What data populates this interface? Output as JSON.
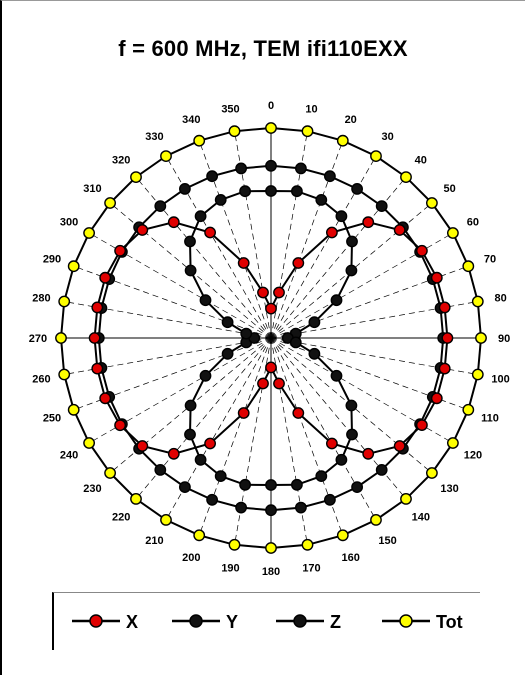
{
  "chart_data": {
    "type": "polar",
    "title": "f = 600 MHz, TEM  ifi110EXX",
    "angle_ticks": [
      "0",
      "10",
      "20",
      "30",
      "40",
      "50",
      "60",
      "70",
      "80",
      "90",
      "100",
      "110",
      "120",
      "130",
      "140",
      "150",
      "160",
      "170",
      "180",
      "190",
      "200",
      "210",
      "220",
      "230",
      "240",
      "250",
      "260",
      "270",
      "280",
      "290",
      "300",
      "310",
      "320",
      "330",
      "340",
      "350"
    ],
    "angles_deg": [
      0,
      10,
      20,
      30,
      40,
      50,
      60,
      70,
      80,
      90,
      100,
      110,
      120,
      130,
      140,
      150,
      160,
      170,
      180,
      190,
      200,
      210,
      220,
      230,
      240,
      250,
      260,
      270,
      280,
      290,
      300,
      310,
      320,
      330,
      340,
      350
    ],
    "radial_range": [
      0,
      1
    ],
    "grid": true,
    "legend_position": "bottom",
    "series": [
      {
        "name": "X",
        "color": "#e00000",
        "values": [
          0.14,
          0.22,
          0.38,
          0.58,
          0.72,
          0.8,
          0.83,
          0.84,
          0.84,
          0.84,
          0.84,
          0.84,
          0.83,
          0.8,
          0.72,
          0.58,
          0.38,
          0.22,
          0.14,
          0.22,
          0.38,
          0.58,
          0.72,
          0.8,
          0.83,
          0.84,
          0.84,
          0.84,
          0.84,
          0.84,
          0.83,
          0.8,
          0.72,
          0.58,
          0.38,
          0.22
        ]
      },
      {
        "name": "Y",
        "color": "#111111",
        "values": [
          0.7,
          0.71,
          0.7,
          0.67,
          0.6,
          0.5,
          0.36,
          0.22,
          0.12,
          0.08,
          0.12,
          0.22,
          0.36,
          0.5,
          0.6,
          0.67,
          0.7,
          0.71,
          0.7,
          0.71,
          0.7,
          0.67,
          0.6,
          0.5,
          0.36,
          0.22,
          0.12,
          0.08,
          0.12,
          0.22,
          0.36,
          0.5,
          0.6,
          0.67,
          0.7,
          0.71
        ]
      },
      {
        "name": "Z",
        "color": "#111111",
        "values": [
          0.82,
          0.82,
          0.82,
          0.82,
          0.82,
          0.82,
          0.82,
          0.82,
          0.82,
          0.82,
          0.82,
          0.82,
          0.82,
          0.82,
          0.82,
          0.82,
          0.82,
          0.82,
          0.82,
          0.82,
          0.82,
          0.82,
          0.82,
          0.82,
          0.82,
          0.82,
          0.82,
          0.82,
          0.82,
          0.82,
          0.82,
          0.82,
          0.82,
          0.82,
          0.82,
          0.82
        ]
      },
      {
        "name": "Tot",
        "color": "#ffff00",
        "values": [
          1,
          1,
          1,
          1,
          1,
          1,
          1,
          1,
          1,
          1,
          1,
          1,
          1,
          1,
          1,
          1,
          1,
          1,
          1,
          1,
          1,
          1,
          1,
          1,
          1,
          1,
          1,
          1,
          1,
          1,
          1,
          1,
          1,
          1,
          1,
          1
        ]
      }
    ]
  },
  "legend": {
    "items": [
      {
        "label": "X",
        "color": "#e00000"
      },
      {
        "label": "Y",
        "color": "#111111"
      },
      {
        "label": "Z",
        "color": "#111111"
      },
      {
        "label": "Tot",
        "color": "#ffff00"
      }
    ]
  }
}
